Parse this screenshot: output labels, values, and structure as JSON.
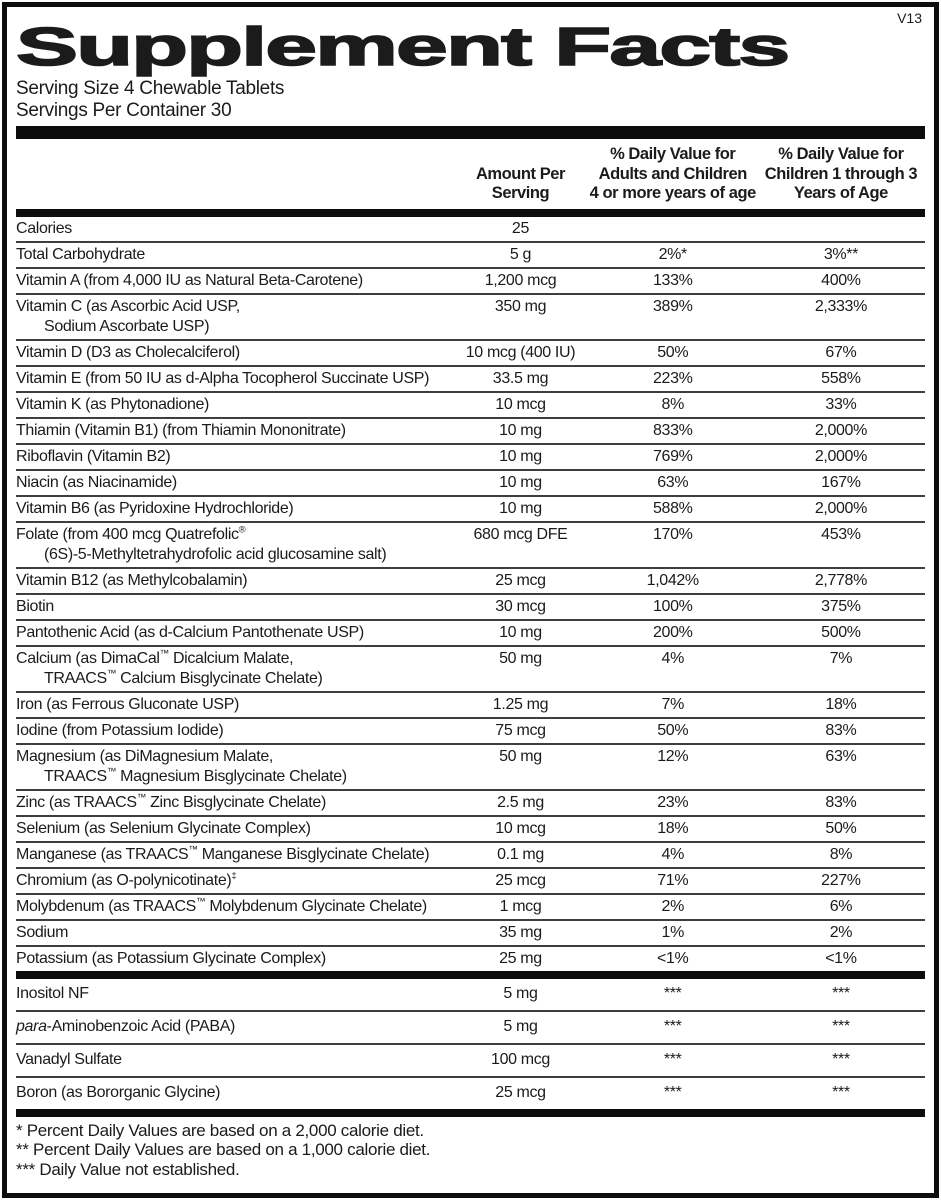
{
  "colors": {
    "bar": "#0d0d0d",
    "line": "#3e3e3e",
    "text": "#1b1b1b"
  },
  "version": "V13",
  "title": "Supplement Facts",
  "serving": {
    "size": "Serving Size 4 Chewable Tablets",
    "per_container": "Servings Per Container 30"
  },
  "columns": {
    "amount": {
      "l1": "Amount Per",
      "l2": "Serving"
    },
    "dv_adults": {
      "l1": "% Daily Value for",
      "l2": "Adults and Children",
      "l3": "4 or more years of age"
    },
    "dv_children": {
      "l1": "% Daily Value for",
      "l2": "Children 1 through 3",
      "l3": "Years of Age"
    }
  },
  "main_rows": [
    {
      "name": "Calories",
      "amount": "25",
      "dv1": "",
      "dv2": ""
    },
    {
      "name": "Total Carbohydrate",
      "amount": "5 g",
      "dv1": "2%*",
      "dv2": "3%**"
    },
    {
      "name": "Vitamin A (from 4,000 IU as Natural Beta-Carotene)",
      "amount": "1,200 mcg",
      "dv1": "133%",
      "dv2": "400%"
    },
    {
      "name": "Vitamin C (as Ascorbic Acid USP,",
      "name2": "Sodium Ascorbate USP)",
      "amount": "350 mg",
      "dv1": "389%",
      "dv2": "2,333%"
    },
    {
      "name": "Vitamin D (D3 as Cholecalciferol)",
      "amount": "10 mcg (400 IU)",
      "dv1": "50%",
      "dv2": "67%"
    },
    {
      "name": "Vitamin E (from 50 IU as d-Alpha Tocopherol Succinate USP)",
      "amount": "33.5 mg",
      "dv1": "223%",
      "dv2": "558%"
    },
    {
      "name": "Vitamin K (as Phytonadione)",
      "amount": "10 mcg",
      "dv1": "8%",
      "dv2": "33%"
    },
    {
      "name": "Thiamin (Vitamin B1) (from Thiamin Mononitrate)",
      "amount": "10 mg",
      "dv1": "833%",
      "dv2": "2,000%"
    },
    {
      "name": "Riboflavin (Vitamin B2)",
      "amount": "10 mg",
      "dv1": "769%",
      "dv2": "2,000%"
    },
    {
      "name": "Niacin (as Niacinamide)",
      "amount": "10 mg",
      "dv1": "63%",
      "dv2": "167%"
    },
    {
      "name": "Vitamin B6 (as Pyridoxine Hydrochloride)",
      "amount": "10 mg",
      "dv1": "588%",
      "dv2": "2,000%"
    },
    {
      "name": "Folate (from 400 mcg Quatrefolic®",
      "name2": "(6S)-5-Methyltetrahydrofolic acid glucosamine salt)",
      "amount": "680 mcg DFE",
      "dv1": "170%",
      "dv2": "453%"
    },
    {
      "name": "Vitamin B12 (as Methylcobalamin)",
      "amount": "25 mcg",
      "dv1": "1,042%",
      "dv2": "2,778%"
    },
    {
      "name": "Biotin",
      "amount": "30 mcg",
      "dv1": "100%",
      "dv2": "375%"
    },
    {
      "name": "Pantothenic Acid (as d-Calcium Pantothenate USP)",
      "amount": "10 mg",
      "dv1": "200%",
      "dv2": "500%"
    },
    {
      "name": "Calcium (as DimaCal™ Dicalcium Malate,",
      "name2": "TRAACS™ Calcium Bisglycinate Chelate)",
      "amount": "50 mg",
      "dv1": "4%",
      "dv2": "7%"
    },
    {
      "name": "Iron (as Ferrous Gluconate USP)",
      "amount": "1.25 mg",
      "dv1": "7%",
      "dv2": "18%"
    },
    {
      "name": "Iodine (from Potassium Iodide)",
      "amount": "75 mcg",
      "dv1": "50%",
      "dv2": "83%"
    },
    {
      "name": "Magnesium (as DiMagnesium Malate,",
      "name2": "TRAACS™ Magnesium Bisglycinate Chelate)",
      "amount": "50 mg",
      "dv1": "12%",
      "dv2": "63%"
    },
    {
      "name": "Zinc (as TRAACS™ Zinc Bisglycinate Chelate)",
      "amount": "2.5 mg",
      "dv1": "23%",
      "dv2": "83%"
    },
    {
      "name": "Selenium (as Selenium Glycinate Complex)",
      "amount": "10 mcg",
      "dv1": "18%",
      "dv2": "50%"
    },
    {
      "name": "Manganese (as TRAACS™ Manganese Bisglycinate Chelate)",
      "amount": "0.1 mg",
      "dv1": "4%",
      "dv2": "8%"
    },
    {
      "name": "Chromium (as O-polynicotinate)‡",
      "amount": "25 mcg",
      "dv1": "71%",
      "dv2": "227%"
    },
    {
      "name": "Molybdenum (as TRAACS™ Molybdenum Glycinate Chelate)",
      "amount": "1 mcg",
      "dv1": "2%",
      "dv2": "6%"
    },
    {
      "name": "Sodium",
      "amount": "35 mg",
      "dv1": "1%",
      "dv2": "2%"
    },
    {
      "name": "Potassium (as Potassium Glycinate Complex)",
      "amount": "25 mg",
      "dv1": "<1%",
      "dv2": "<1%"
    }
  ],
  "secondary_rows": [
    {
      "name": "Inositol NF",
      "amount": "5 mg",
      "dv1": "***",
      "dv2": "***"
    },
    {
      "name_italic": "para",
      "name": "-Aminobenzoic Acid (PABA)",
      "amount": "5 mg",
      "dv1": "***",
      "dv2": "***"
    },
    {
      "name": "Vanadyl Sulfate",
      "amount": "100 mcg",
      "dv1": "***",
      "dv2": "***"
    },
    {
      "name": "Boron (as Bororganic Glycine)",
      "amount": "25 mcg",
      "dv1": "***",
      "dv2": "***"
    }
  ],
  "footnotes": [
    "* Percent Daily Values are based on a 2,000 calorie diet.",
    "** Percent Daily Values are based on a 1,000 calorie diet.",
    "*** Daily Value not established."
  ]
}
